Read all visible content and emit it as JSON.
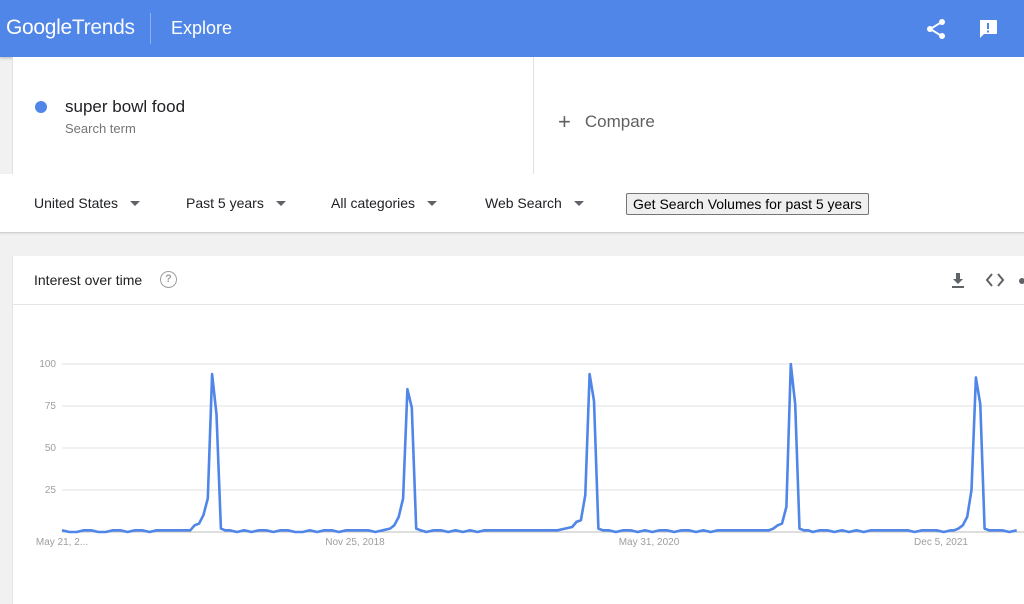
{
  "header": {
    "logo_google": "Google",
    "logo_trends": "Trends",
    "page": "Explore",
    "colors": {
      "bar": "#4f86e8"
    },
    "icons": [
      "share-icon",
      "feedback-icon"
    ]
  },
  "search": {
    "term": "super bowl food",
    "term_label": "Search term",
    "compare_label": "Compare"
  },
  "filters": {
    "region": "United States",
    "period": "Past 5 years",
    "category": "All categories",
    "property": "Web Search",
    "volumes_button": "Get Search Volumes for past 5 years"
  },
  "card": {
    "title": "Interest over time",
    "help": "?",
    "icons": [
      "download-icon",
      "embed-icon",
      "more-icon"
    ]
  },
  "chart_data": {
    "type": "line",
    "ylim": [
      0,
      100
    ],
    "yticks": [
      25,
      50,
      75,
      100
    ],
    "grid": true,
    "xtick_labels": [
      "May 21, 2...",
      "Nov 25, 2018",
      "May 31, 2020",
      "Dec 5, 2021"
    ],
    "series": [
      {
        "color": "#4f86e8",
        "points": [
          [
            0,
            1
          ],
          [
            5,
            0
          ],
          [
            10,
            0
          ],
          [
            15,
            1
          ],
          [
            20,
            1
          ],
          [
            25,
            0
          ],
          [
            30,
            0
          ],
          [
            35,
            1
          ],
          [
            40,
            1
          ],
          [
            45,
            0
          ],
          [
            50,
            1
          ],
          [
            55,
            1
          ],
          [
            60,
            0
          ],
          [
            65,
            1
          ],
          [
            70,
            1
          ],
          [
            75,
            1
          ],
          [
            80,
            1
          ],
          [
            85,
            1
          ],
          [
            88,
            1
          ],
          [
            91,
            4
          ],
          [
            94,
            5
          ],
          [
            97,
            10
          ],
          [
            100,
            20
          ],
          [
            103,
            94
          ],
          [
            106,
            70
          ],
          [
            109,
            2
          ],
          [
            112,
            1
          ],
          [
            115,
            1
          ],
          [
            120,
            0
          ],
          [
            125,
            1
          ],
          [
            130,
            0
          ],
          [
            135,
            1
          ],
          [
            140,
            1
          ],
          [
            145,
            0
          ],
          [
            150,
            1
          ],
          [
            155,
            1
          ],
          [
            160,
            0
          ],
          [
            165,
            0
          ],
          [
            170,
            1
          ],
          [
            175,
            0
          ],
          [
            180,
            1
          ],
          [
            185,
            1
          ],
          [
            190,
            0
          ],
          [
            195,
            1
          ],
          [
            200,
            1
          ],
          [
            205,
            1
          ],
          [
            210,
            1
          ],
          [
            215,
            0
          ],
          [
            220,
            1
          ],
          [
            225,
            2
          ],
          [
            228,
            4
          ],
          [
            231,
            9
          ],
          [
            234,
            20
          ],
          [
            237,
            85
          ],
          [
            240,
            74
          ],
          [
            243,
            2
          ],
          [
            246,
            1
          ],
          [
            250,
            0
          ],
          [
            255,
            1
          ],
          [
            260,
            1
          ],
          [
            265,
            0
          ],
          [
            270,
            1
          ],
          [
            275,
            0
          ],
          [
            280,
            1
          ],
          [
            285,
            0
          ],
          [
            290,
            1
          ],
          [
            295,
            1
          ],
          [
            300,
            1
          ],
          [
            305,
            1
          ],
          [
            310,
            1
          ],
          [
            315,
            1
          ],
          [
            320,
            1
          ],
          [
            325,
            1
          ],
          [
            330,
            1
          ],
          [
            335,
            1
          ],
          [
            340,
            1
          ],
          [
            345,
            2
          ],
          [
            350,
            3
          ],
          [
            353,
            6
          ],
          [
            356,
            7
          ],
          [
            359,
            22
          ],
          [
            362,
            94
          ],
          [
            365,
            78
          ],
          [
            368,
            2
          ],
          [
            371,
            1
          ],
          [
            375,
            1
          ],
          [
            380,
            0
          ],
          [
            385,
            1
          ],
          [
            390,
            1
          ],
          [
            395,
            0
          ],
          [
            400,
            1
          ],
          [
            405,
            0
          ],
          [
            410,
            1
          ],
          [
            415,
            1
          ],
          [
            420,
            0
          ],
          [
            425,
            1
          ],
          [
            430,
            1
          ],
          [
            435,
            0
          ],
          [
            440,
            1
          ],
          [
            445,
            0
          ],
          [
            450,
            1
          ],
          [
            455,
            1
          ],
          [
            460,
            1
          ],
          [
            465,
            1
          ],
          [
            470,
            1
          ],
          [
            475,
            1
          ],
          [
            480,
            1
          ],
          [
            485,
            1
          ],
          [
            488,
            2
          ],
          [
            491,
            4
          ],
          [
            494,
            5
          ],
          [
            497,
            15
          ],
          [
            500,
            100
          ],
          [
            503,
            76
          ],
          [
            506,
            2
          ],
          [
            509,
            1
          ],
          [
            512,
            1
          ],
          [
            515,
            0
          ],
          [
            520,
            1
          ],
          [
            525,
            1
          ],
          [
            530,
            0
          ],
          [
            535,
            1
          ],
          [
            540,
            0
          ],
          [
            545,
            1
          ],
          [
            550,
            0
          ],
          [
            555,
            1
          ],
          [
            560,
            1
          ],
          [
            565,
            1
          ],
          [
            570,
            1
          ],
          [
            575,
            1
          ],
          [
            580,
            1
          ],
          [
            585,
            0
          ],
          [
            590,
            1
          ],
          [
            595,
            1
          ],
          [
            600,
            1
          ],
          [
            605,
            0
          ],
          [
            610,
            1
          ],
          [
            612,
            1
          ],
          [
            615,
            2
          ],
          [
            618,
            4
          ],
          [
            621,
            9
          ],
          [
            624,
            25
          ],
          [
            627,
            92
          ],
          [
            630,
            76
          ],
          [
            633,
            2
          ],
          [
            636,
            1
          ],
          [
            640,
            1
          ],
          [
            645,
            1
          ],
          [
            650,
            0
          ],
          [
            655,
            1
          ]
        ]
      }
    ]
  }
}
